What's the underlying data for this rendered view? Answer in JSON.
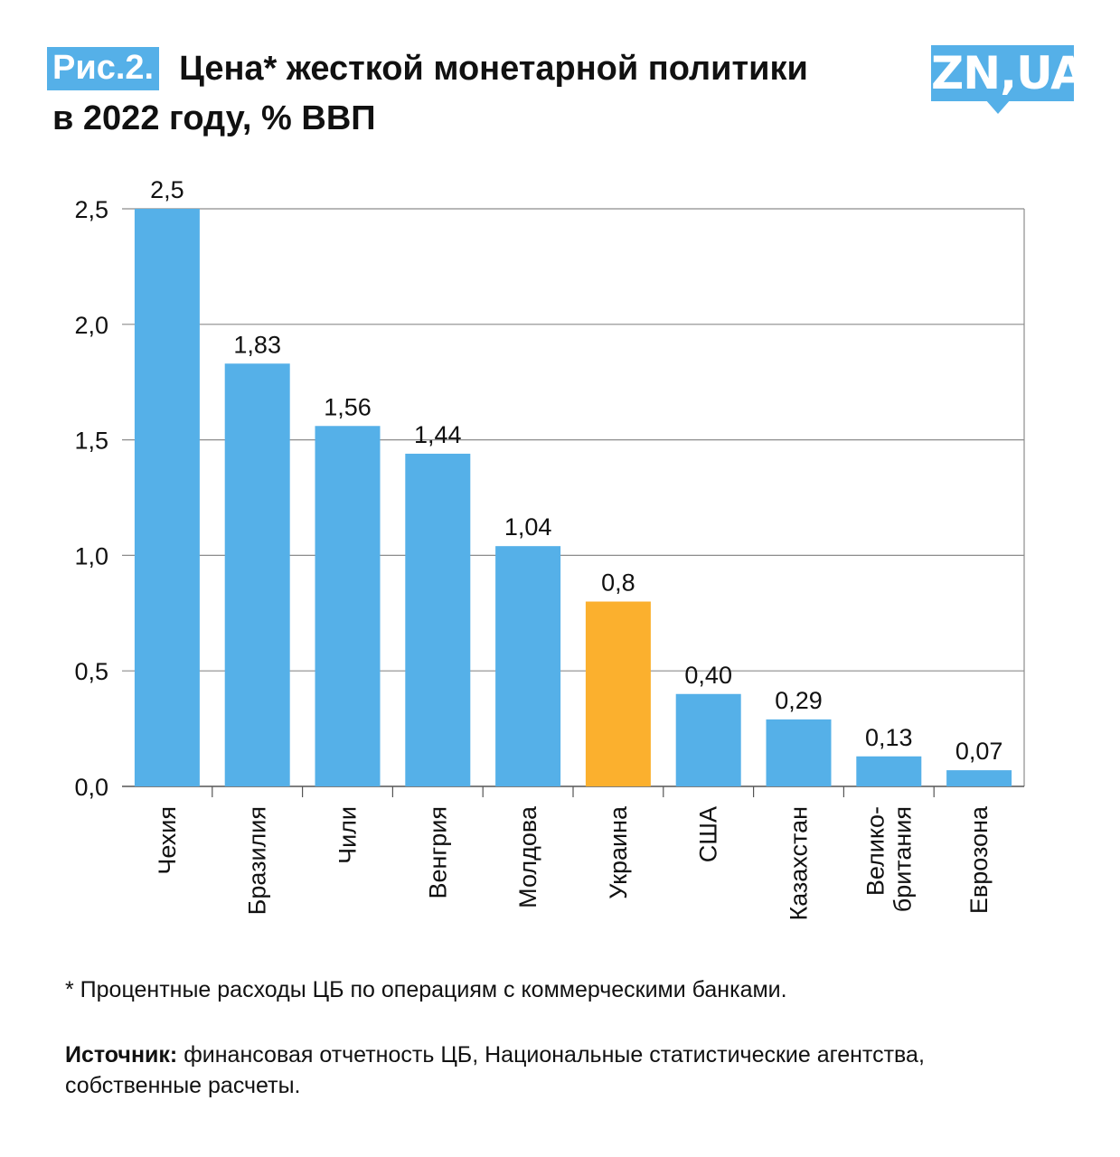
{
  "header": {
    "figure_label": "Рис.2.",
    "title_line1": "Цена* жесткой монетарной политики",
    "title_line2": "в 2022 году, % ВВП"
  },
  "logo": {
    "text": "ZN,UA"
  },
  "chart_data": {
    "type": "bar",
    "categories": [
      "Чехия",
      "Бразилия",
      "Чили",
      "Венгрия",
      "Молдова",
      "Украина",
      "США",
      "Казахстан",
      "Велико-\nбритания",
      "Еврозона"
    ],
    "values": [
      2.5,
      1.83,
      1.56,
      1.44,
      1.04,
      0.8,
      0.4,
      0.29,
      0.13,
      0.07
    ],
    "value_labels": [
      "2,5",
      "1,83",
      "1,56",
      "1,44",
      "1,04",
      "0,8",
      "0,40",
      "0,29",
      "0,13",
      "0,07"
    ],
    "ylim": [
      0,
      2.5
    ],
    "yticks": [
      0,
      0.5,
      1.0,
      1.5,
      2.0,
      2.5
    ],
    "ytick_labels": [
      "0,0",
      "0,5",
      "1,0",
      "1,5",
      "2,0",
      "2,5"
    ],
    "grid": true,
    "colors": {
      "default": "#55b0e8",
      "highlight": "#fbb02e",
      "grid": "#8c8c8c"
    },
    "highlight_category": "Украина",
    "xlabel": "",
    "ylabel": ""
  },
  "footnote": "* Процентные расходы ЦБ по операциям с коммерческими банками.",
  "source": {
    "label": "Источник:",
    "text": " финансовая отчетность ЦБ, Национальные статистические агентства, собственные расчеты."
  }
}
